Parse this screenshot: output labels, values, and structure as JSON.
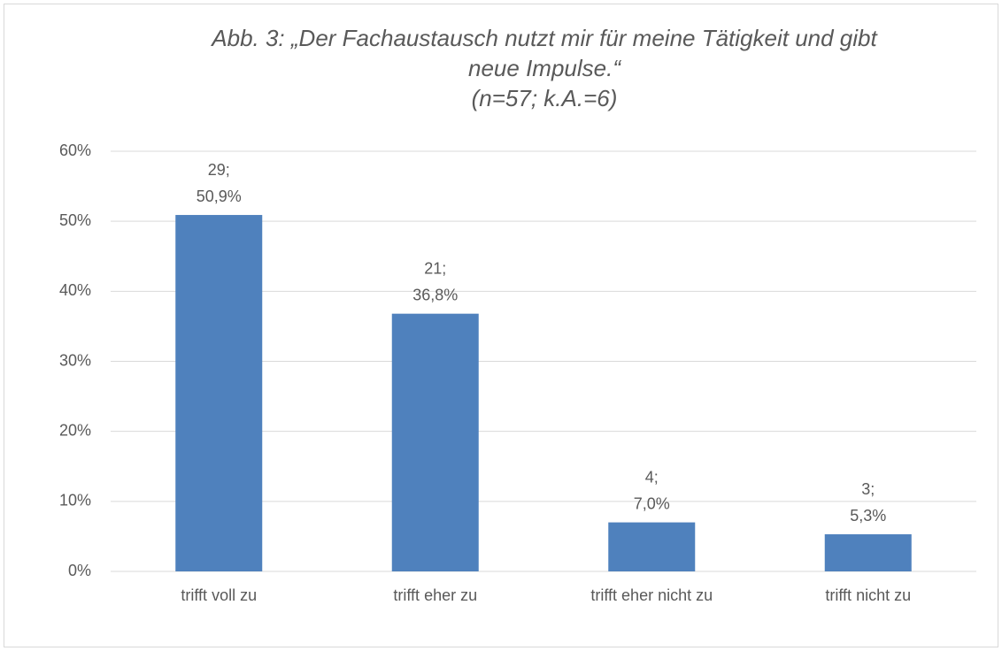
{
  "chart_data": {
    "type": "bar",
    "title": [
      "Abb. 3: „Der Fachaustausch nutzt mir für meine Tätigkeit und gibt",
      "neue Impulse.“",
      "(n=57; k.A.=6)"
    ],
    "categories": [
      "trifft voll zu",
      "trifft eher zu",
      "trifft eher nicht zu",
      "trifft nicht zu"
    ],
    "values": [
      50.9,
      36.8,
      7.0,
      5.3
    ],
    "value_labels": [
      [
        "29;",
        "50,9%"
      ],
      [
        "21;",
        "36,8%"
      ],
      [
        "4;",
        "7,0%"
      ],
      [
        "3;",
        "5,3%"
      ]
    ],
    "color": "#4f81bd",
    "ylim": [
      0,
      60
    ],
    "yticks": [
      {
        "value": 0,
        "label": "0%"
      },
      {
        "value": 10,
        "label": "10%"
      },
      {
        "value": 20,
        "label": "20%"
      },
      {
        "value": 30,
        "label": "30%"
      },
      {
        "value": 40,
        "label": "40%"
      },
      {
        "value": 50,
        "label": "50%"
      },
      {
        "value": 60,
        "label": "60%"
      }
    ],
    "grid": true
  }
}
